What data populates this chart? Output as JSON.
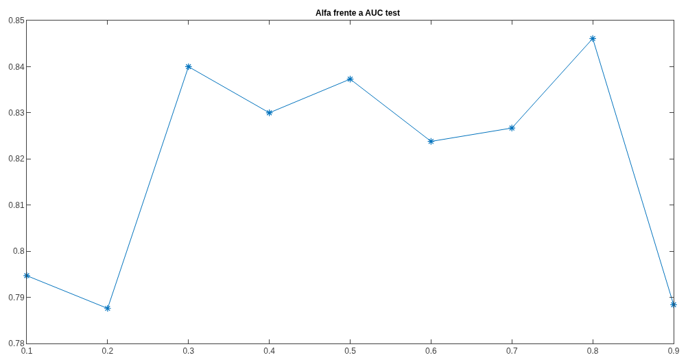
{
  "chart_data": {
    "type": "line",
    "title": "Alfa frente a AUC test",
    "x": [
      0.1,
      0.2,
      0.3,
      0.4,
      0.5,
      0.6,
      0.7,
      0.8,
      0.9
    ],
    "series": [
      {
        "color": "#0072bd",
        "values": [
          0.7947,
          0.7876,
          0.84,
          0.83,
          0.8373,
          0.8238,
          0.8267,
          0.8461,
          0.7884
        ]
      }
    ],
    "xlim": [
      0.1,
      0.9
    ],
    "xticks": [
      0.1,
      0.2,
      0.3,
      0.4,
      0.5,
      0.6,
      0.7,
      0.8,
      0.9
    ],
    "ylim": [
      0.78,
      0.85
    ],
    "yticks": [
      0.78,
      0.79,
      {
        "value": 0.8,
        "label": "0.8"
      },
      0.81,
      0.82,
      0.83,
      0.84,
      0.85
    ],
    "marker": "cross",
    "line_style": "solid"
  }
}
